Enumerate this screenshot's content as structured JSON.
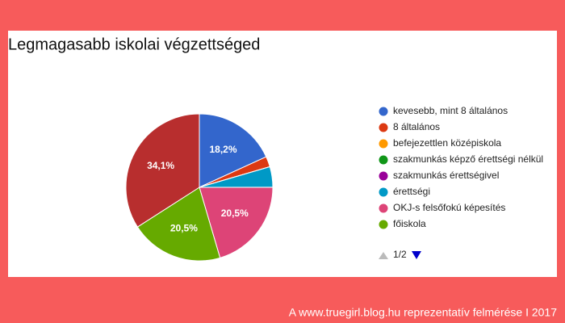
{
  "chart_data": {
    "type": "pie",
    "title": "Legmagasabb iskolai végzettséged",
    "categories": [
      "kevesebb, mint 8 általános",
      "8 általános",
      "befejezettlen középiskola",
      "szakmunkás képző érettségi nélkül",
      "szakmunkás érettségivel",
      "érettségi",
      "OKJ-s felsőfokú képesítés",
      "főiskola",
      null
    ],
    "values": [
      18.2,
      2.3,
      0,
      0,
      0,
      4.5,
      20.5,
      20.5,
      34.1
    ],
    "value_labels": [
      "18,2%",
      null,
      null,
      null,
      null,
      null,
      "20,5%",
      "20,5%",
      "34,1%"
    ],
    "colors": [
      "#3366cc",
      "#dc3912",
      "#ff9900",
      "#109618",
      "#990099",
      "#0099c6",
      "#dd4477",
      "#66aa00",
      "#b82e2e"
    ],
    "legend_page": "1/2"
  },
  "footer": "A www.truegirl.blog.hu reprezentatív felmérése I 2017"
}
